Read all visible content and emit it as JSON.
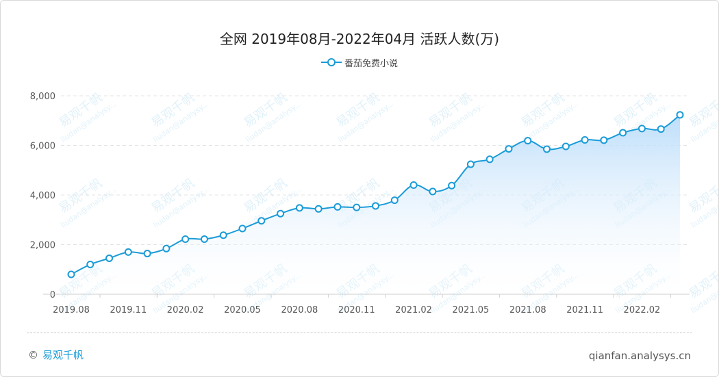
{
  "title": "全网 2019年08月-2022年04月 活跃人数(万)",
  "footer": {
    "copyright_symbol": "©",
    "brand": "易观千帆",
    "site": "qianfan.analysys.cn"
  },
  "watermark": {
    "brand": "易观千帆",
    "account": "liudan@analysy..."
  },
  "colors": {
    "line": "#1a9bd7",
    "area_top": "#bfe0fb",
    "grid": "#e3e3e3"
  },
  "chart_data": {
    "type": "area",
    "title": "全网 2019年08月-2022年04月 活跃人数(万)",
    "xlabel": "",
    "ylabel": "",
    "ylim": [
      0,
      8000
    ],
    "yticks": [
      "0",
      "2,000",
      "4,000",
      "6,000",
      "8,000"
    ],
    "xtick_labels": [
      "2019.08",
      "2019.11",
      "2020.02",
      "2020.05",
      "2020.08",
      "2020.11",
      "2021.02",
      "2021.05",
      "2021.08",
      "2021.11",
      "2022.02"
    ],
    "legend": "top-center",
    "grid": true,
    "x": [
      "2019.08",
      "2019.09",
      "2019.10",
      "2019.11",
      "2019.12",
      "2020.01",
      "2020.02",
      "2020.03",
      "2020.04",
      "2020.05",
      "2020.06",
      "2020.07",
      "2020.08",
      "2020.09",
      "2020.10",
      "2020.11",
      "2020.12",
      "2021.01",
      "2021.02",
      "2021.03",
      "2021.04",
      "2021.05",
      "2021.06",
      "2021.07",
      "2021.08",
      "2021.09",
      "2021.10",
      "2021.11",
      "2021.12",
      "2022.01",
      "2022.02",
      "2022.03",
      "2022.04"
    ],
    "series": [
      {
        "name": "番茄免费小说",
        "values": [
          800,
          1200,
          1450,
          1700,
          1640,
          1840,
          2220,
          2220,
          2380,
          2650,
          2960,
          3250,
          3480,
          3440,
          3520,
          3500,
          3560,
          3790,
          4400,
          4140,
          4380,
          5240,
          5440,
          5860,
          6190,
          5850,
          5960,
          6220,
          6210,
          6510,
          6680,
          6660,
          7230
        ]
      }
    ]
  }
}
